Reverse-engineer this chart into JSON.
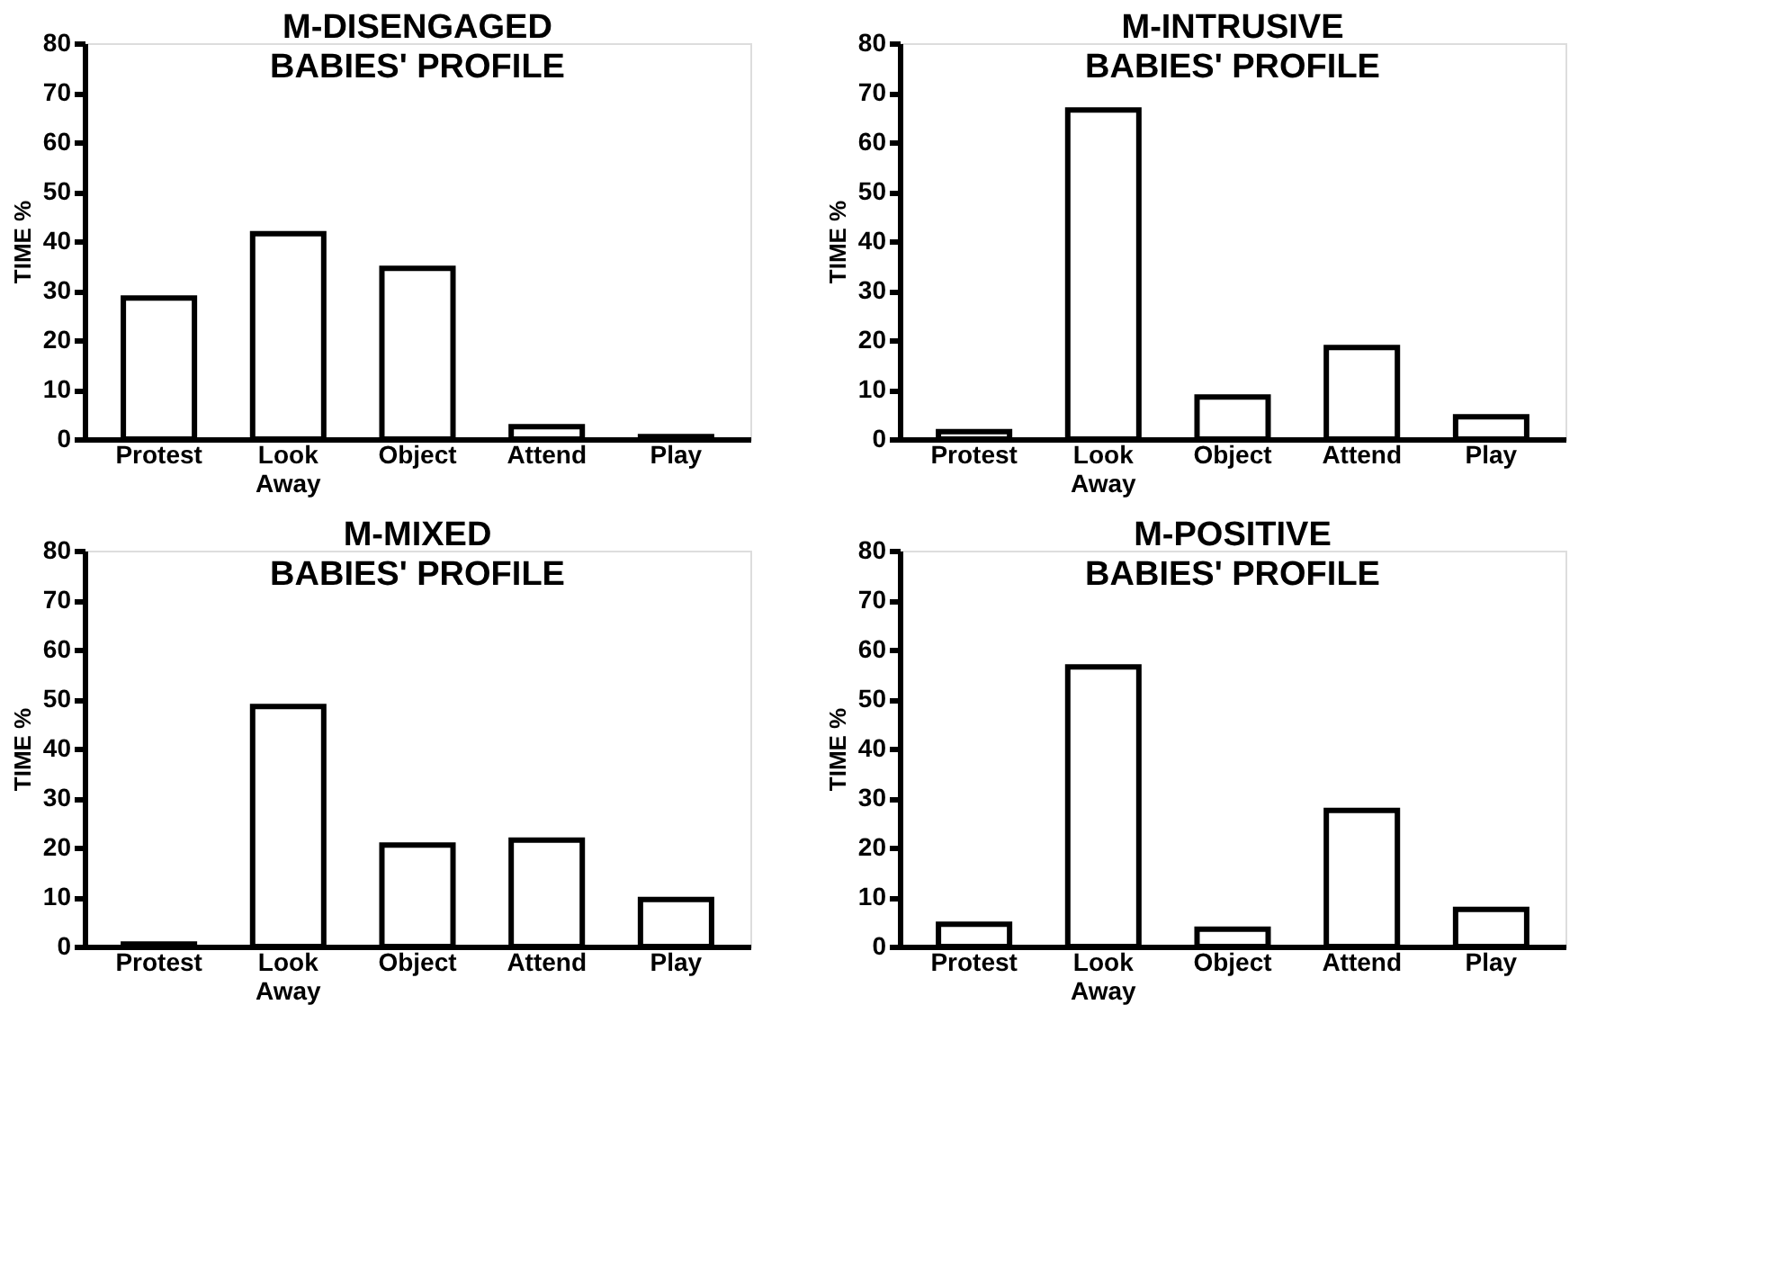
{
  "chart_data": [
    {
      "type": "bar",
      "title": [
        "M-DISENGAGED",
        "BABIES' PROFILE"
      ],
      "ylabel": "TIME %",
      "categories": [
        "Protest",
        "Look Away",
        "Object",
        "Attend",
        "Play"
      ],
      "values": [
        28.5,
        41.5,
        34.5,
        2.5,
        0.5
      ],
      "color": "#ffffff",
      "ylim": [
        0,
        80
      ],
      "yticks": [
        0,
        10,
        20,
        30,
        40,
        50,
        60,
        70,
        80
      ],
      "grid": false
    },
    {
      "type": "bar",
      "title": [
        "M-INTRUSIVE",
        "BABIES' PROFILE"
      ],
      "ylabel": "TIME %",
      "categories": [
        "Protest",
        "Look Away",
        "Object",
        "Attend",
        "Play"
      ],
      "values": [
        1.5,
        66.5,
        8.5,
        18.5,
        4.5
      ],
      "color": "#ffffff",
      "ylim": [
        0,
        80
      ],
      "yticks": [
        0,
        10,
        20,
        30,
        40,
        50,
        60,
        70,
        80
      ],
      "grid": false
    },
    {
      "type": "bar",
      "title": [
        "M-MIXED",
        "BABIES' PROFILE"
      ],
      "ylabel": "TIME %",
      "categories": [
        "Protest",
        "Look Away",
        "Object",
        "Attend",
        "Play"
      ],
      "values": [
        0.5,
        48.5,
        20.5,
        21.5,
        9.5
      ],
      "color": "#ffffff",
      "ylim": [
        0,
        80
      ],
      "yticks": [
        0,
        10,
        20,
        30,
        40,
        50,
        60,
        70,
        80
      ],
      "grid": false
    },
    {
      "type": "bar",
      "title": [
        "M-POSITIVE",
        "BABIES' PROFILE"
      ],
      "ylabel": "TIME %",
      "categories": [
        "Protest",
        "Look Away",
        "Object",
        "Attend",
        "Play"
      ],
      "values": [
        4.5,
        56.5,
        3.5,
        27.5,
        7.5
      ],
      "color": "#ffffff",
      "ylim": [
        0,
        80
      ],
      "yticks": [
        0,
        10,
        20,
        30,
        40,
        50,
        60,
        70,
        80
      ],
      "grid": false
    }
  ]
}
